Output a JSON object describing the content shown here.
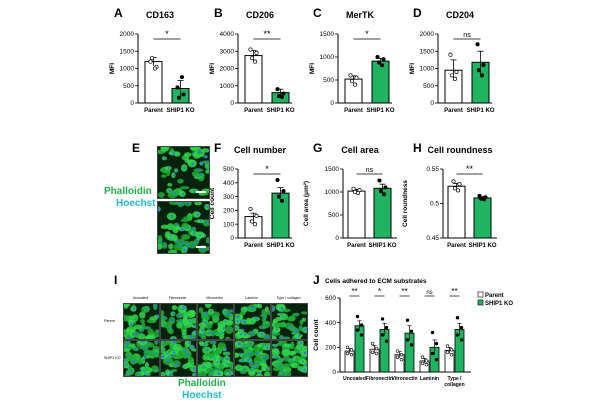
{
  "colors": {
    "parent_fill": "#ffffff",
    "ko_fill": "#20b462",
    "stroke": "#000000",
    "phalloidin": "#20b24a",
    "hoechst": "#23b9d0"
  },
  "panels": {
    "A": {
      "letter": "A"
    },
    "B": {
      "letter": "B"
    },
    "C": {
      "letter": "C"
    },
    "D": {
      "letter": "D"
    },
    "E": {
      "letter": "E",
      "stain_labels": [
        "Phalloidin",
        "Hoechst"
      ]
    },
    "F": {
      "letter": "F"
    },
    "G": {
      "letter": "G"
    },
    "H": {
      "letter": "H"
    },
    "I": {
      "letter": "I",
      "columns": [
        "Uncoated",
        "Fibronectin",
        "Vitronectin",
        "Laminin",
        "Type I collagen"
      ],
      "rows": [
        "Parent",
        "SHIP1 KO"
      ],
      "stain_labels": [
        "Phalloidin",
        "Hoechst"
      ]
    },
    "J": {
      "letter": "J"
    }
  },
  "chart_data": [
    {
      "id": "A",
      "type": "bar",
      "title": "CD163",
      "ylabel": "MFI",
      "categories": [
        "Parent",
        "SHIP1 KO"
      ],
      "values": [
        1200,
        420
      ],
      "errors": [
        120,
        230
      ],
      "points": [
        [
          1200,
          1050,
          1300,
          1000
        ],
        [
          450,
          250,
          150,
          750
        ]
      ],
      "ylim": [
        0,
        2000
      ],
      "yticks": [
        0,
        500,
        1000,
        1500,
        2000
      ],
      "significance": "*"
    },
    {
      "id": "B",
      "type": "bar",
      "title": "CD206",
      "ylabel": "MFI",
      "categories": [
        "Parent",
        "SHIP1 KO"
      ],
      "values": [
        2750,
        600
      ],
      "errors": [
        300,
        200
      ],
      "points": [
        [
          3100,
          2900,
          2600,
          2400
        ],
        [
          800,
          550,
          400,
          350
        ]
      ],
      "ylim": [
        0,
        4000
      ],
      "yticks": [
        0,
        1000,
        2000,
        3000,
        4000
      ],
      "significance": "**"
    },
    {
      "id": "C",
      "type": "bar",
      "title": "MerTK",
      "ylabel": "MFI",
      "categories": [
        "Parent",
        "SHIP1 KO"
      ],
      "values": [
        520,
        910
      ],
      "errors": [
        70,
        60
      ],
      "points": [
        [
          600,
          550,
          480,
          400
        ],
        [
          1000,
          950,
          880,
          820
        ]
      ],
      "ylim": [
        0,
        1500
      ],
      "yticks": [
        0,
        500,
        1000,
        1500
      ],
      "significance": "*"
    },
    {
      "id": "D",
      "type": "bar",
      "title": "CD204",
      "ylabel": "MFI",
      "categories": [
        "Parent",
        "SHIP1 KO"
      ],
      "values": [
        950,
        1180
      ],
      "errors": [
        300,
        320
      ],
      "points": [
        [
          1400,
          900,
          800,
          700
        ],
        [
          1700,
          1100,
          950,
          800
        ]
      ],
      "ylim": [
        0,
        2000
      ],
      "yticks": [
        0,
        500,
        1000,
        1500,
        2000
      ],
      "significance": "ns"
    },
    {
      "id": "F",
      "type": "bar",
      "title": "Cell number",
      "ylabel": "Cell count",
      "categories": [
        "Parent",
        "SHIP1 KO"
      ],
      "values": [
        155,
        325
      ],
      "errors": [
        25,
        40
      ],
      "points": [
        [
          210,
          160,
          120,
          100
        ],
        [
          420,
          340,
          300,
          270
        ]
      ],
      "ylim": [
        0,
        500
      ],
      "yticks": [
        0,
        100,
        200,
        300,
        400,
        500
      ],
      "significance": "*"
    },
    {
      "id": "G",
      "type": "bar",
      "title": "Cell area",
      "ylabel": "Cell area (μm²)",
      "categories": [
        "Parent",
        "SHIP1 KO"
      ],
      "values": [
        1020,
        1080
      ],
      "errors": [
        40,
        90
      ],
      "points": [
        [
          1070,
          1040,
          1000,
          980
        ],
        [
          1250,
          1100,
          1020,
          950
        ]
      ],
      "ylim": [
        0,
        1500
      ],
      "yticks": [
        0,
        500,
        1000,
        1500
      ],
      "significance": "ns"
    },
    {
      "id": "H",
      "type": "bar",
      "title": "Cell roundness",
      "ylabel": "Cell roundness",
      "categories": [
        "Parent",
        "SHIP1 KO"
      ],
      "values": [
        0.525,
        0.508
      ],
      "errors": [
        0.004,
        0.002
      ],
      "points": [
        [
          0.532,
          0.528,
          0.522,
          0.519
        ],
        [
          0.511,
          0.509,
          0.507,
          0.506
        ]
      ],
      "ylim": [
        0.45,
        0.55
      ],
      "yticks": [
        0.45,
        0.5,
        0.55
      ],
      "significance": "**"
    },
    {
      "id": "J",
      "type": "bar",
      "title": "Cells adhered to ECM substrates",
      "ylabel": "Cell count",
      "categories": [
        "Uncoated",
        "Fibronectin",
        "Vitronectin",
        "Laminin",
        "Type I collagen"
      ],
      "series": [
        {
          "name": "Parent",
          "values": [
            170,
            185,
            140,
            90,
            175
          ],
          "errors": [
            20,
            30,
            25,
            20,
            25
          ],
          "points": [
            [
              200,
              180,
              150,
              140
            ],
            [
              230,
              190,
              160,
              150
            ],
            [
              170,
              140,
              120,
              100
            ],
            [
              120,
              90,
              70,
              60
            ],
            [
              210,
              180,
              160,
              140
            ]
          ]
        },
        {
          "name": "SHIP1 KO",
          "values": [
            375,
            345,
            315,
            200,
            345
          ],
          "errors": [
            40,
            50,
            60,
            60,
            50
          ],
          "points": [
            [
              450,
              380,
              340,
              300
            ],
            [
              430,
              360,
              300,
              250
            ],
            [
              420,
              330,
              260,
              220
            ],
            [
              320,
              230,
              150,
              100
            ],
            [
              440,
              360,
              300,
              260
            ]
          ]
        }
      ],
      "ylim": [
        0,
        600
      ],
      "yticks": [
        0,
        200,
        400,
        600
      ],
      "significance": [
        "**",
        "*",
        "**",
        "ns",
        "**"
      ],
      "legend": "top-right"
    }
  ]
}
